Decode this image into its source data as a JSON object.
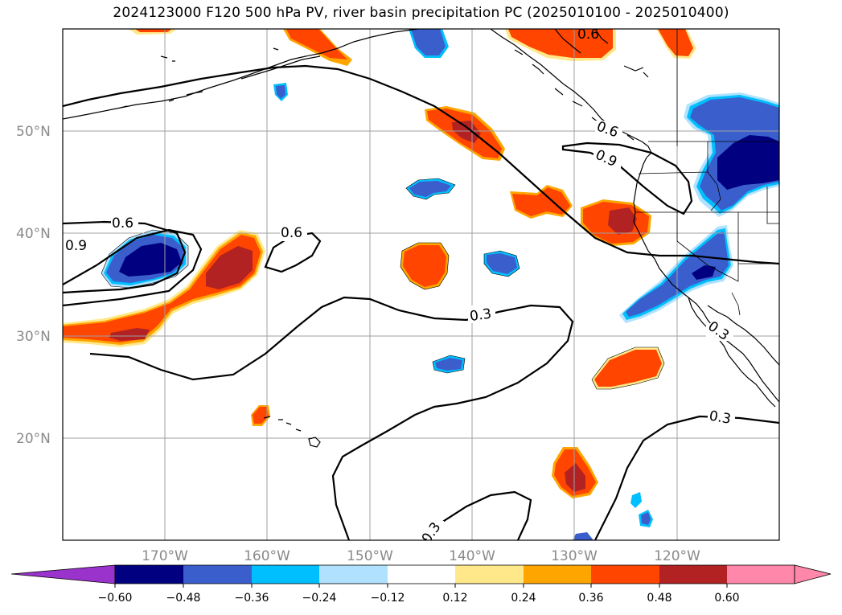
{
  "title": "2024123000 F120 500 hPa PV, river basin precipitation PC (2025010100 - 2025010400)",
  "map": {
    "lat_labels": [
      "50°N",
      "40°N",
      "30°N",
      "20°N"
    ],
    "lon_labels": [
      "170°W",
      "160°W",
      "150°W",
      "140°W",
      "130°W",
      "120°W"
    ],
    "contour_labels": [
      "0.6",
      "0.9",
      "0.6",
      "0.9",
      "0.6",
      "0.6",
      "0.3",
      "0.3",
      "0.3",
      "0.3"
    ],
    "colors": {
      "neg_extreme": "#9933cc",
      "neg_060": "#000080",
      "neg_048": "#3a5fcd",
      "neg_036": "#00bfff",
      "neg_024": "#b0e2ff",
      "neutral": "#ffffff",
      "pos_012": "#ffe88a",
      "pos_024": "#ffa500",
      "pos_036": "#ff4500",
      "pos_048": "#b22222",
      "pos_extreme": "#ff88aa"
    }
  },
  "colorbar": {
    "ticks": [
      "−0.60",
      "−0.48",
      "−0.36",
      "−0.24",
      "−0.12",
      "0.12",
      "0.24",
      "0.36",
      "0.48",
      "0.60"
    ]
  }
}
